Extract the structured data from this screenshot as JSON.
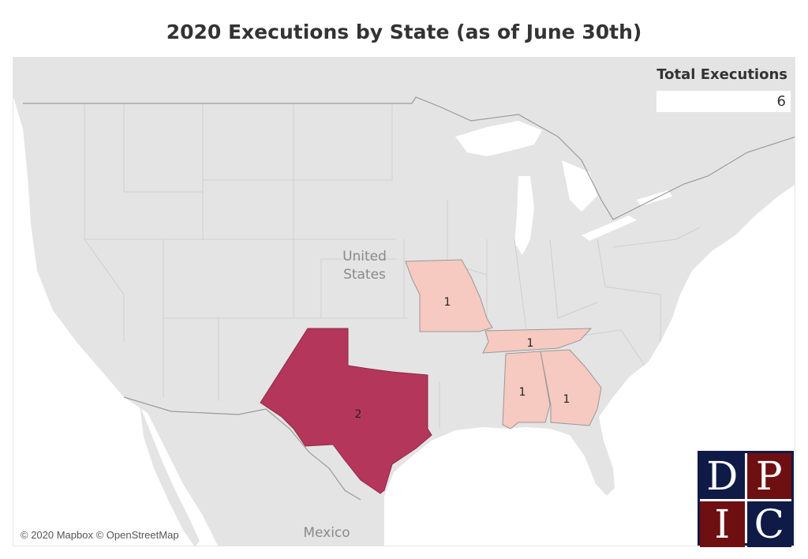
{
  "title": "2020 Executions by State (as of June 30th)",
  "summary": {
    "label": "Total Executions",
    "value": "6"
  },
  "map": {
    "country_label_line1": "United",
    "country_label_line2": "States",
    "mexico_label": "Mexico",
    "attribution": "© 2020 Mapbox © OpenStreetMap",
    "states": [
      {
        "state": "Texas",
        "executions": "2"
      },
      {
        "state": "Missouri",
        "executions": "1"
      },
      {
        "state": "Tennessee",
        "executions": "1"
      },
      {
        "state": "Alabama",
        "executions": "1"
      },
      {
        "state": "Georgia",
        "executions": "1"
      }
    ],
    "colors": {
      "low": "#f6c9c1",
      "high": "#b5365b",
      "land": "#e4e4e4",
      "water": "#ffffff"
    }
  },
  "logo": {
    "letters": [
      "D",
      "P",
      "I",
      "C"
    ],
    "colors": [
      "#0f1a47",
      "#6e0f12"
    ]
  }
}
